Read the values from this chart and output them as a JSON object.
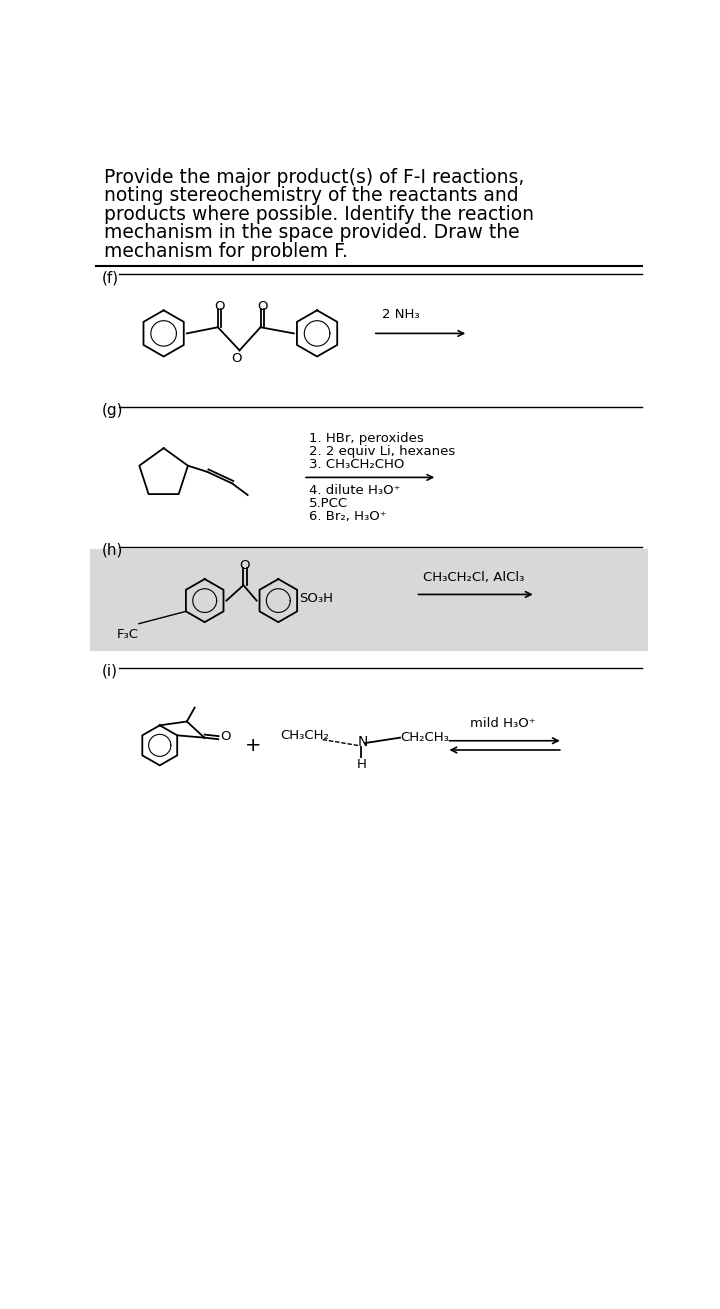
{
  "bg_color": "#ffffff",
  "section_bg_h_color": "#d8d8d8",
  "title_lines": [
    "Provide the major product(s) of F-I reactions,",
    "noting stereochemistry of the reactants and",
    "products where possible. Identify the reaction",
    "mechanism in the space provided. Draw the",
    "mechanism for problem F."
  ],
  "label_f": "(f)",
  "label_g": "(g)",
  "label_h": "(h)",
  "label_i": "(i)",
  "reagent_f": "2 NH₃",
  "reagent_g_lines": [
    "1. HBr, peroxides",
    "2. 2 equiv Li, hexanes",
    "3. CH₃CH₂CHO",
    "4. dilute H₃O⁺",
    "5.PCC",
    "6. Br₂, H₃O⁺"
  ],
  "reagent_h": "CH₃CH₂Cl, AlCl₃",
  "reagent_i": "mild H₃O⁺",
  "title_fontsize": 13.5,
  "label_fontsize": 11,
  "reagent_fontsize": 9.5,
  "chem_fontsize": 9.5
}
